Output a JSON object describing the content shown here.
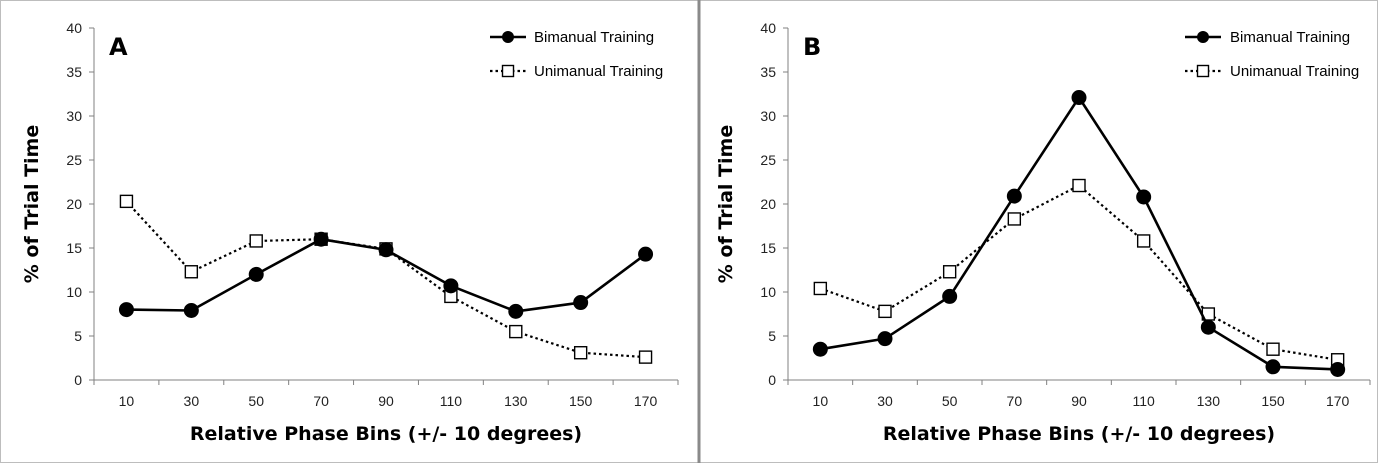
{
  "chart_data": [
    {
      "type": "line",
      "panel_label": "A",
      "xlabel": "Relative Phase Bins (+/- 10 degrees)",
      "ylabel": "% of Trial Time",
      "categories": [
        "10",
        "30",
        "50",
        "70",
        "90",
        "110",
        "130",
        "150",
        "170"
      ],
      "yticks": [
        "0",
        "5",
        "10",
        "15",
        "20",
        "25",
        "30",
        "35",
        "40"
      ],
      "ylim": [
        0,
        40
      ],
      "legend_position": "top-right",
      "series": [
        {
          "name": "Bimanual Training",
          "style": "solid",
          "marker": "filled-circle",
          "color": "#000000",
          "values": [
            8.0,
            7.9,
            12.0,
            16.0,
            14.8,
            10.7,
            7.8,
            8.8,
            14.3
          ]
        },
        {
          "name": "Unimanual Training",
          "style": "dotted",
          "marker": "open-square",
          "color": "#000000",
          "values": [
            20.3,
            12.3,
            15.8,
            16.0,
            14.9,
            9.5,
            5.5,
            3.1,
            2.6
          ]
        }
      ]
    },
    {
      "type": "line",
      "panel_label": "B",
      "xlabel": "Relative Phase Bins (+/- 10 degrees)",
      "ylabel": "% of Trial Time",
      "categories": [
        "10",
        "30",
        "50",
        "70",
        "90",
        "110",
        "130",
        "150",
        "170"
      ],
      "yticks": [
        "0",
        "5",
        "10",
        "15",
        "20",
        "25",
        "30",
        "35",
        "40"
      ],
      "ylim": [
        0,
        40
      ],
      "legend_position": "top-right",
      "series": [
        {
          "name": "Bimanual Training",
          "style": "solid",
          "marker": "filled-circle",
          "color": "#000000",
          "values": [
            3.5,
            4.7,
            9.5,
            20.9,
            32.1,
            20.8,
            6.0,
            1.5,
            1.2
          ]
        },
        {
          "name": "Unimanual Training",
          "style": "dotted",
          "marker": "open-square",
          "color": "#000000",
          "values": [
            10.4,
            7.8,
            12.3,
            18.3,
            22.1,
            15.8,
            7.5,
            3.5,
            2.3
          ]
        }
      ]
    }
  ],
  "colors": {
    "axis": "#808080",
    "panel_border": "#bdbdbd",
    "panel_divider": "#8a8a8a"
  }
}
